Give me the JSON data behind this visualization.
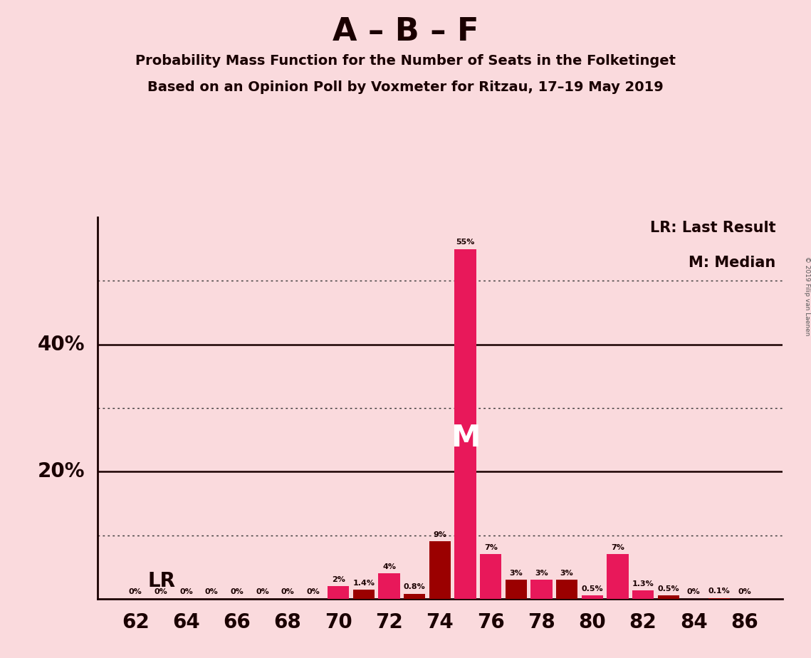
{
  "title_main": "A – B – F",
  "title_sub1": "Probability Mass Function for the Number of Seats in the Folketinget",
  "title_sub2": "Based on an Opinion Poll by Voxmeter for Ritzau, 17–19 May 2019",
  "copyright": "© 2019 Filip van Laenen",
  "background_color": "#fadadd",
  "seats": [
    62,
    63,
    64,
    65,
    66,
    67,
    68,
    69,
    70,
    71,
    72,
    73,
    74,
    75,
    76,
    77,
    78,
    79,
    80,
    81,
    82,
    83,
    84,
    85,
    86
  ],
  "probabilities": [
    0.0,
    0.0,
    0.0,
    0.0,
    0.0,
    0.0,
    0.0,
    0.0,
    2.0,
    1.4,
    4.0,
    0.8,
    9.0,
    55.0,
    7.0,
    3.0,
    3.0,
    3.0,
    0.5,
    7.0,
    1.3,
    0.5,
    0.0,
    0.1,
    0.0
  ],
  "labels": [
    "0%",
    "0%",
    "0%",
    "0%",
    "0%",
    "0%",
    "0%",
    "0%",
    "2%",
    "1.4%",
    "4%",
    "0.8%",
    "9%",
    "55%",
    "7%",
    "3%",
    "3%",
    "3%",
    "0.5%",
    "7%",
    "1.3%",
    "0.5%",
    "0%",
    "0.1%",
    "0%"
  ],
  "bar_colors": [
    "#9b0000",
    "#9b0000",
    "#9b0000",
    "#9b0000",
    "#9b0000",
    "#9b0000",
    "#9b0000",
    "#9b0000",
    "#e8185a",
    "#9b0000",
    "#e8185a",
    "#9b0000",
    "#9b0000",
    "#e8185a",
    "#e8185a",
    "#9b0000",
    "#e8185a",
    "#9b0000",
    "#e8185a",
    "#e8185a",
    "#e8185a",
    "#9b0000",
    "#9b0000",
    "#9b0000",
    "#9b0000"
  ],
  "median_seat": 75,
  "lr_seat": 74,
  "dotted_yticks": [
    10,
    30,
    50
  ],
  "solid_yticks": [
    20,
    40
  ],
  "xlabel_seats": [
    62,
    64,
    66,
    68,
    70,
    72,
    74,
    76,
    78,
    80,
    82,
    84,
    86
  ],
  "ylim_max": 60,
  "legend_lr": "LR: Last Result",
  "legend_m": "M: Median",
  "lr_label": "LR",
  "m_label": "M"
}
